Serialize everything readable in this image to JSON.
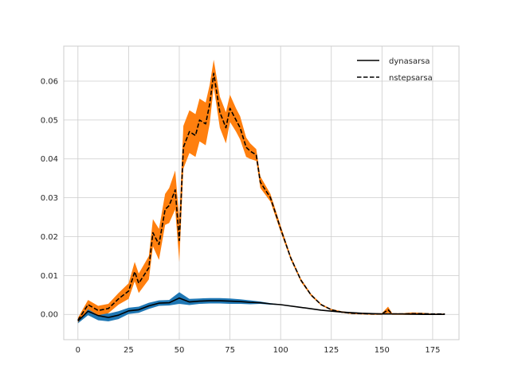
{
  "chart_data": {
    "type": "line",
    "title": "",
    "xlabel": "",
    "ylabel": "",
    "xlim": [
      -7,
      188
    ],
    "ylim": [
      -0.0065,
      0.069
    ],
    "xticks": [
      0,
      25,
      50,
      75,
      100,
      125,
      150,
      175
    ],
    "yticks": [
      0.0,
      0.01,
      0.02,
      0.03,
      0.04,
      0.05,
      0.06
    ],
    "ytick_labels": [
      "0.00",
      "0.01",
      "0.02",
      "0.03",
      "0.04",
      "0.05",
      "0.06"
    ],
    "grid": true,
    "legend_position": "top-right",
    "series": [
      {
        "name": "dynasarsa",
        "line_style": "solid",
        "line_color": "#000000",
        "band_color": "#1f77b4",
        "x": [
          0,
          5,
          10,
          15,
          20,
          25,
          30,
          35,
          40,
          45,
          50,
          55,
          60,
          65,
          70,
          75,
          80,
          85,
          90,
          95,
          100,
          110,
          120,
          130,
          140,
          150,
          160,
          170,
          181
        ],
        "y": [
          -0.0017,
          0.0008,
          -0.0003,
          -0.0008,
          -0.0002,
          0.0009,
          0.0012,
          0.0022,
          0.0029,
          0.003,
          0.0042,
          0.0032,
          0.0034,
          0.0035,
          0.0035,
          0.0034,
          0.0033,
          0.0031,
          0.003,
          0.0027,
          0.0025,
          0.0018,
          0.0011,
          0.0006,
          0.0003,
          0.0001,
          0.0001,
          0.0,
          0.0
        ],
        "band": [
          0.0006,
          0.001,
          0.0012,
          0.001,
          0.001,
          0.0008,
          0.0008,
          0.0008,
          0.0007,
          0.0007,
          0.0015,
          0.0008,
          0.0007,
          0.0007,
          0.0007,
          0.0007,
          0.0006,
          0.0005,
          0.0003,
          0.0002,
          0.0001,
          0.0001,
          0.0,
          0.0,
          0.0,
          0.0,
          0.0,
          0.0,
          0.0
        ]
      },
      {
        "name": "nstepsarsa",
        "line_style": "dashed",
        "line_color": "#000000",
        "band_color": "#ff7f0e",
        "x": [
          0,
          5,
          10,
          15,
          20,
          25,
          28,
          30,
          35,
          37,
          40,
          43,
          45,
          48,
          50,
          52,
          55,
          58,
          60,
          63,
          65,
          67,
          70,
          73,
          75,
          78,
          80,
          83,
          85,
          88,
          90,
          95,
          100,
          105,
          110,
          115,
          120,
          125,
          130,
          135,
          140,
          145,
          150,
          153,
          155,
          160,
          165,
          170,
          175,
          181
        ],
        "y": [
          -0.0015,
          0.0025,
          0.001,
          0.0015,
          0.004,
          0.006,
          0.011,
          0.008,
          0.012,
          0.021,
          0.018,
          0.027,
          0.028,
          0.032,
          0.019,
          0.043,
          0.047,
          0.046,
          0.05,
          0.049,
          0.054,
          0.062,
          0.052,
          0.048,
          0.053,
          0.05,
          0.048,
          0.043,
          0.042,
          0.041,
          0.034,
          0.03,
          0.022,
          0.0145,
          0.0088,
          0.005,
          0.0025,
          0.0012,
          0.0006,
          0.0003,
          0.0002,
          0.0001,
          0.0001,
          0.0012,
          0.0001,
          0.0001,
          0.0002,
          0.0002,
          0.0001,
          0.0001
        ],
        "band": [
          0.0006,
          0.0012,
          0.0012,
          0.0012,
          0.0015,
          0.002,
          0.0025,
          0.0025,
          0.003,
          0.0035,
          0.004,
          0.004,
          0.0045,
          0.005,
          0.0055,
          0.0055,
          0.0055,
          0.0055,
          0.0055,
          0.0055,
          0.005,
          0.0035,
          0.004,
          0.004,
          0.0035,
          0.003,
          0.003,
          0.0025,
          0.002,
          0.0015,
          0.0015,
          0.001,
          0.0008,
          0.0005,
          0.0004,
          0.0003,
          0.0002,
          0.0002,
          0.0002,
          0.0002,
          0.0002,
          0.0002,
          0.0002,
          0.0008,
          0.0002,
          0.0002,
          0.0003,
          0.0002,
          0.0001,
          0.0001
        ]
      }
    ]
  }
}
